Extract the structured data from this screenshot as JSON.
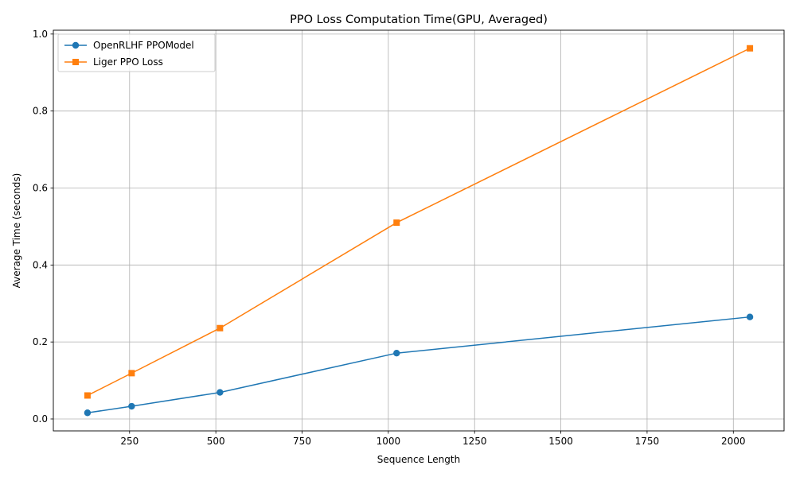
{
  "chart_data": {
    "type": "line",
    "title": "PPO Loss Computation Time(GPU, Averaged)",
    "xlabel": "Sequence Length",
    "ylabel": "Average Time (seconds)",
    "x": [
      128,
      256,
      512,
      1024,
      2048
    ],
    "xlim": [
      29,
      2147
    ],
    "ylim": [
      -0.031,
      1.01
    ],
    "xticks": [
      250,
      500,
      750,
      1000,
      1250,
      1500,
      1750,
      2000
    ],
    "yticks": [
      0.0,
      0.2,
      0.4,
      0.6,
      0.8,
      1.0
    ],
    "xtick_labels": [
      "250",
      "500",
      "750",
      "1000",
      "1250",
      "1500",
      "1750",
      "2000"
    ],
    "ytick_labels": [
      "0.0",
      "0.2",
      "0.4",
      "0.6",
      "0.8",
      "1.0"
    ],
    "grid": true,
    "legend_position": "top-left",
    "series": [
      {
        "name": "OpenRLHF PPOModel",
        "color": "#1f77b4",
        "marker": "circle",
        "values": [
          0.016,
          0.033,
          0.069,
          0.171,
          0.265
        ]
      },
      {
        "name": "Liger PPO Loss",
        "color": "#ff7f0e",
        "marker": "square",
        "values": [
          0.061,
          0.119,
          0.236,
          0.51,
          0.963
        ]
      }
    ]
  }
}
